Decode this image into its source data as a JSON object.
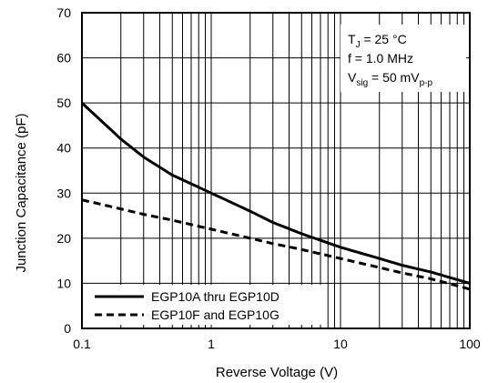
{
  "chart_data": {
    "type": "line",
    "xlabel": "Reverse Voltage (V)",
    "ylabel": "Junction Capacitance (pF)",
    "xscale": "log",
    "xlim": [
      0.1,
      100
    ],
    "ylim": [
      0,
      70
    ],
    "x_ticks": [
      "0.1",
      "1",
      "10",
      "100"
    ],
    "y_ticks": [
      "0",
      "10",
      "20",
      "30",
      "40",
      "50",
      "60",
      "70"
    ],
    "grid": true,
    "legend_position": "bottom-left",
    "conditions": {
      "tj": {
        "main": "T",
        "sub": "J",
        "rest": " = 25 °C"
      },
      "freq": "f = 1.0 MHz",
      "vsig": {
        "main": "V",
        "sub": "sig",
        "mid": " = 50 mV",
        "sub2": "p-p"
      }
    },
    "series": [
      {
        "name": "EGP10A thru EGP10D",
        "style": "solid",
        "x": [
          0.1,
          0.2,
          0.3,
          0.5,
          1,
          2,
          3,
          5,
          10,
          20,
          30,
          50,
          100
        ],
        "y": [
          50,
          42,
          38,
          34,
          30,
          26,
          23.5,
          21,
          18,
          15.5,
          14,
          12.5,
          10
        ]
      },
      {
        "name": "EGP10F and EGP10G",
        "style": "dashed",
        "x": [
          0.1,
          0.2,
          0.3,
          0.5,
          1,
          2,
          3,
          5,
          10,
          20,
          30,
          50,
          100
        ],
        "y": [
          28.5,
          26.5,
          25.3,
          24,
          22,
          20,
          18.8,
          17.5,
          15.5,
          13.5,
          12.3,
          11,
          8.7
        ]
      }
    ]
  }
}
